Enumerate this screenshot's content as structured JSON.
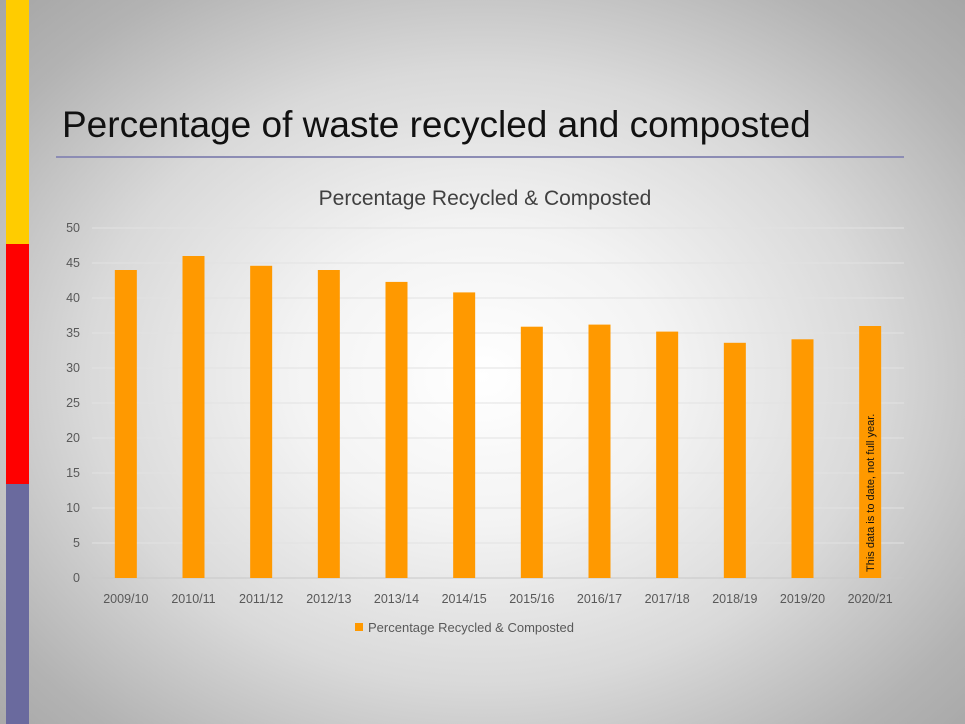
{
  "slide": {
    "title": "Percentage of waste recycled and composted",
    "accent_colors": [
      "#ffcc00",
      "#ff0000",
      "#6a6a9e"
    ]
  },
  "chart_data": {
    "type": "bar",
    "title": "Percentage Recycled & Composted",
    "categories": [
      "2009/10",
      "2010/11",
      "2011/12",
      "2012/13",
      "2013/14",
      "2014/15",
      "2015/16",
      "2016/17",
      "2017/18",
      "2018/19",
      "2019/20",
      "2020/21"
    ],
    "series": [
      {
        "name": "Percentage Recycled & Composted",
        "color": "#ff9900",
        "values": [
          44,
          46,
          44.6,
          44,
          42.3,
          40.8,
          35.9,
          36.2,
          35.2,
          33.6,
          34.1,
          36
        ]
      }
    ],
    "ylim": [
      0,
      50
    ],
    "yticks": [
      0,
      5,
      10,
      15,
      20,
      25,
      30,
      35,
      40,
      45,
      50
    ],
    "grid": true,
    "legend_position": "bottom",
    "annotation": {
      "category": "2020/21",
      "text": "This data is to date, not full year."
    }
  }
}
